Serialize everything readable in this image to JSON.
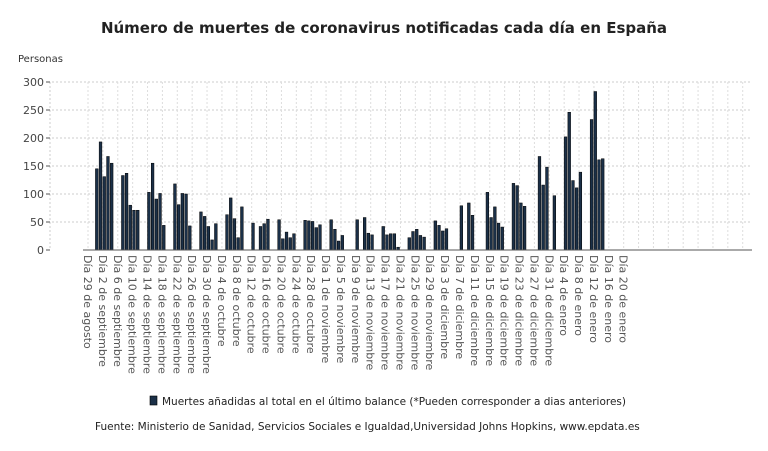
{
  "chart_data": {
    "type": "bar",
    "title": "Número de muertes de coronavirus notificadas cada día en España",
    "ylabel": "Personas",
    "xlabel": "",
    "ylim": [
      0,
      300
    ],
    "yticks": [
      "0",
      "50",
      "100",
      "150",
      "200",
      "250",
      "300"
    ],
    "grid": true,
    "legend_position": "bottom",
    "bar_color": "#1b3048",
    "x_tick_labels": [
      "Día 29 de agosto",
      "Día 2 de septiembre",
      "Día 6 de septiembre",
      "Día 10 de septiembre",
      "Día 14 de septiembre",
      "Día 18 de septiembre",
      "Día 22 de septiembre",
      "Día 26 de septiembre",
      "Día 30 de septiembre",
      "Día 4 de octubre",
      "Día 8 de octubre",
      "Día 12 de octubre",
      "Día 16 de octubre",
      "Día 20 de octubre",
      "Día 24 de octubre",
      "Día 28 de octubre",
      "Día 1 de noviembre",
      "Día 5 de noviembre",
      "Día 9 de noviembre",
      "Día 13 de noviembre",
      "Día 17 de noviembre",
      "Día 21 de noviembre",
      "Día 25 de noviembre",
      "Día 29 de noviembre",
      "Día 3 de diciembre",
      "Día 7 de diciembre",
      "Día 11 de diciembre",
      "Día 15 de diciembre",
      "Día 19 de diciembre",
      "Día 23 de diciembre",
      "Día 27 de diciembre",
      "Día 31 de diciembre",
      "Día 4 de enero",
      "Día 8 de enero",
      "Día 12 de enero",
      "Día 16 de enero",
      "Día 20 de enero"
    ],
    "series": [
      {
        "name": "Muertes añadidas al total en el último balance (*Pueden corresponder a dias anteriores)",
        "daily_values_from_29_agosto": [
          0,
          0,
          145,
          193,
          131,
          167,
          155,
          0,
          0,
          133,
          137,
          80,
          71,
          71,
          0,
          0,
          103,
          155,
          91,
          101,
          44,
          0,
          0,
          118,
          81,
          101,
          100,
          43,
          0,
          0,
          68,
          60,
          42,
          18,
          47,
          0,
          0,
          63,
          93,
          56,
          22,
          77,
          0,
          0,
          48,
          0,
          42,
          47,
          55,
          0,
          0,
          54,
          20,
          32,
          22,
          29,
          0,
          0,
          53,
          52,
          51,
          40,
          45,
          0,
          0,
          54,
          37,
          16,
          26,
          0,
          0,
          0,
          54,
          0,
          58,
          30,
          27,
          0,
          0,
          42,
          27,
          29,
          29,
          5,
          0,
          0,
          22,
          33,
          37,
          26,
          23,
          0,
          0,
          52,
          44,
          34,
          38,
          0,
          0,
          0,
          79,
          0,
          84,
          62,
          0,
          0,
          0,
          103,
          58,
          77,
          48,
          41,
          0,
          0,
          119,
          115,
          84,
          78,
          0,
          0,
          0,
          167,
          116,
          148,
          0,
          97,
          0,
          0,
          202,
          246,
          124,
          111,
          139,
          0,
          0,
          233,
          283,
          161,
          163
        ]
      }
    ]
  },
  "source": "Fuente: Ministerio de Sanidad, Servicios Sociales e Igualdad,Universidad Johns Hopkins, www.epdata.es"
}
